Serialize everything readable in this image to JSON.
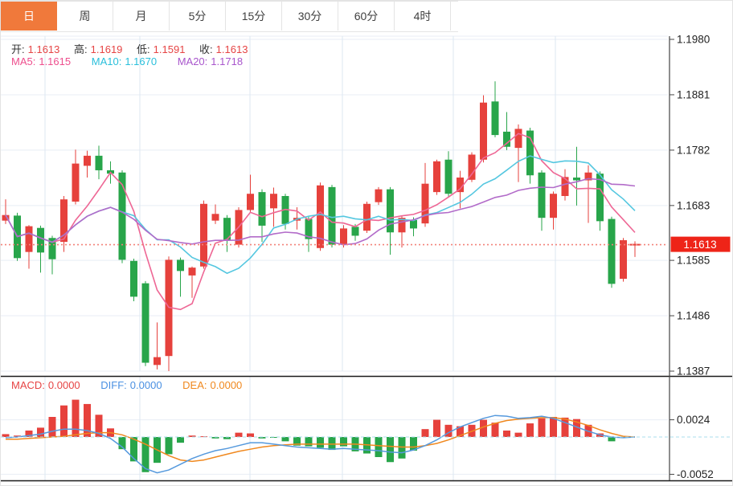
{
  "tabs": {
    "items": [
      {
        "label": "日",
        "active": true
      },
      {
        "label": "周",
        "active": false
      },
      {
        "label": "月",
        "active": false
      },
      {
        "label": "5分",
        "active": false
      },
      {
        "label": "15分",
        "active": false
      },
      {
        "label": "30分",
        "active": false
      },
      {
        "label": "60分",
        "active": false
      },
      {
        "label": "4时",
        "active": false
      }
    ]
  },
  "quote": {
    "open_label": "开:",
    "open": "1.1613",
    "high_label": "高:",
    "high": "1.1619",
    "low_label": "低:",
    "low": "1.1591",
    "close_label": "收:",
    "close": "1.1613",
    "ma5_label": "MA5:",
    "ma5": "1.1615",
    "ma10_label": "MA10:",
    "ma10": "1.1670",
    "ma20_label": "MA20:",
    "ma20": "1.1718"
  },
  "macd_header": {
    "macd_label": "MACD:",
    "macd": "0.0000",
    "diff_label": "DIFF:",
    "diff": "0.0000",
    "dea_label": "DEA:",
    "dea": "0.0000"
  },
  "colors": {
    "up": "#e6413c",
    "down": "#28a54a",
    "ma5": "#ee6795",
    "ma10": "#55c7e0",
    "ma20": "#b26bc9",
    "diff_line": "#5599dd",
    "dea_line": "#f0881e",
    "last_price_line": "#f4827a",
    "price_tag": "#ee2418",
    "tab_active": "#f0793b",
    "grid": "#e8eef5",
    "vgrid": "#dde7f1",
    "axis_line": "#444444",
    "zero_dash": "#a8dcec",
    "panel_divider": "#1a1a1a"
  },
  "chart_data": {
    "type": "candlestick+macd",
    "title": "",
    "legend": [
      "MA5",
      "MA10",
      "MA20",
      "MACD",
      "DIFF",
      "DEA"
    ],
    "price_axis": {
      "labels": [
        "1.1980",
        "1.1881",
        "1.1782",
        "1.1683",
        "1.1585",
        "1.1486",
        "1.1387"
      ],
      "values": [
        1.198,
        1.1881,
        1.1782,
        1.1683,
        1.1585,
        1.1486,
        1.1387
      ],
      "range": [
        1.1387,
        1.198
      ]
    },
    "last_price": 1.1613,
    "last_price_label": "1.1613",
    "ma_periods": [
      5,
      10,
      20
    ],
    "candles_format": [
      "open",
      "high",
      "low",
      "close"
    ],
    "candles": [
      [
        1.1656,
        1.1694,
        1.165,
        1.1666
      ],
      [
        1.1665,
        1.167,
        1.1584,
        1.1589
      ],
      [
        1.16,
        1.1648,
        1.157,
        1.1646
      ],
      [
        1.1643,
        1.1647,
        1.1563,
        1.1599
      ],
      [
        1.1625,
        1.1629,
        1.156,
        1.1587
      ],
      [
        1.1618,
        1.17,
        1.16,
        1.1694
      ],
      [
        1.169,
        1.1783,
        1.1685,
        1.1758
      ],
      [
        1.1754,
        1.1781,
        1.1733,
        1.1772
      ],
      [
        1.1772,
        1.179,
        1.173,
        1.1746
      ],
      [
        1.1746,
        1.1762,
        1.1722,
        1.174
      ],
      [
        1.1742,
        1.1746,
        1.158,
        1.1586
      ],
      [
        1.1584,
        1.1588,
        1.1512,
        1.152
      ],
      [
        1.1544,
        1.1548,
        1.1396,
        1.1402
      ],
      [
        1.1398,
        1.1474,
        1.139,
        1.1412
      ],
      [
        1.1414,
        1.1592,
        1.1387,
        1.1586
      ],
      [
        1.1586,
        1.159,
        1.152,
        1.1566
      ],
      [
        1.1558,
        1.1574,
        1.1518,
        1.1572
      ],
      [
        1.1574,
        1.1692,
        1.157,
        1.1686
      ],
      [
        1.1656,
        1.1685,
        1.165,
        1.1668
      ],
      [
        1.1661,
        1.1666,
        1.16,
        1.1621
      ],
      [
        1.1613,
        1.168,
        1.1608,
        1.1675
      ],
      [
        1.1675,
        1.1738,
        1.167,
        1.1704
      ],
      [
        1.1707,
        1.1712,
        1.1618,
        1.1647
      ],
      [
        1.1678,
        1.1715,
        1.1645,
        1.1704
      ],
      [
        1.17,
        1.1704,
        1.164,
        1.165
      ],
      [
        1.1656,
        1.168,
        1.164,
        1.1661
      ],
      [
        1.1659,
        1.1663,
        1.16,
        1.1623
      ],
      [
        1.1607,
        1.1724,
        1.1602,
        1.1719
      ],
      [
        1.1716,
        1.172,
        1.1608,
        1.1613
      ],
      [
        1.1613,
        1.1648,
        1.1608,
        1.1642
      ],
      [
        1.1645,
        1.165,
        1.162,
        1.1629
      ],
      [
        1.1638,
        1.169,
        1.1634,
        1.1686
      ],
      [
        1.1689,
        1.1716,
        1.1684,
        1.1712
      ],
      [
        1.1712,
        1.1716,
        1.1595,
        1.1635
      ],
      [
        1.1635,
        1.1665,
        1.1608,
        1.1661
      ],
      [
        1.1657,
        1.1662,
        1.1628,
        1.1642
      ],
      [
        1.1651,
        1.1759,
        1.1645,
        1.1722
      ],
      [
        1.1707,
        1.1765,
        1.1702,
        1.1762
      ],
      [
        1.1765,
        1.178,
        1.1698,
        1.1704
      ],
      [
        1.1707,
        1.1745,
        1.1678,
        1.1733
      ],
      [
        1.1729,
        1.1778,
        1.1725,
        1.1774
      ],
      [
        1.1765,
        1.188,
        1.176,
        1.1867
      ],
      [
        1.1869,
        1.1905,
        1.1805,
        1.1809
      ],
      [
        1.1815,
        1.185,
        1.1782,
        1.1788
      ],
      [
        1.1786,
        1.1828,
        1.1725,
        1.182
      ],
      [
        1.1817,
        1.1822,
        1.1722,
        1.1737
      ],
      [
        1.1742,
        1.1746,
        1.1638,
        1.1661
      ],
      [
        1.1661,
        1.1708,
        1.164,
        1.1704
      ],
      [
        1.17,
        1.1748,
        1.1692,
        1.1734
      ],
      [
        1.1733,
        1.1788,
        1.1683,
        1.1728
      ],
      [
        1.1728,
        1.1755,
        1.1652,
        1.1742
      ],
      [
        1.174,
        1.1744,
        1.1638,
        1.1655
      ],
      [
        1.1659,
        1.1663,
        1.1536,
        1.1543
      ],
      [
        1.1552,
        1.1625,
        1.1547,
        1.1621
      ],
      [
        1.1613,
        1.1619,
        1.1591,
        1.1613
      ]
    ],
    "macd": {
      "axis_labels": [
        "0.0024",
        "-0.0052"
      ],
      "axis_values": [
        0.0024,
        -0.0052
      ],
      "unit": 0.0001,
      "histogram": [
        4,
        2,
        9,
        13,
        28,
        44,
        52,
        46,
        31,
        12,
        -17,
        -34,
        -49,
        -36,
        -24,
        -8,
        2,
        1,
        -2,
        -3,
        6,
        5,
        -2,
        -1,
        -6,
        -12,
        -13,
        -15,
        -18,
        -13,
        -20,
        -23,
        -28,
        -35,
        -30,
        -19,
        11,
        24,
        17,
        15,
        17,
        24,
        20,
        9,
        6,
        19,
        26,
        28,
        27,
        25,
        17,
        5,
        -6,
        0,
        0
      ],
      "diff": [
        -1,
        0,
        2,
        4,
        8,
        11,
        11,
        9,
        5,
        -2,
        -14,
        -30,
        -44,
        -50,
        -46,
        -38,
        -30,
        -24,
        -19,
        -16,
        -12,
        -8,
        -8,
        -10,
        -12,
        -14,
        -15,
        -16,
        -17,
        -16,
        -17,
        -18,
        -19,
        -21,
        -22,
        -18,
        -12,
        -4,
        6,
        14,
        20,
        26,
        30,
        29,
        26,
        27,
        29,
        26,
        20,
        14,
        8,
        3,
        0,
        -1,
        0
      ],
      "dea": [
        -3,
        -3,
        -2,
        -1,
        0,
        1,
        3,
        5,
        6,
        6,
        3,
        -3,
        -10,
        -18,
        -26,
        -32,
        -34,
        -32,
        -28,
        -24,
        -20,
        -17,
        -14,
        -12,
        -11,
        -10,
        -10,
        -10,
        -10,
        -10,
        -10,
        -11,
        -12,
        -13,
        -14,
        -14,
        -12,
        -9,
        -4,
        2,
        8,
        14,
        19,
        23,
        25,
        26,
        27,
        27,
        25,
        21,
        16,
        10,
        5,
        1,
        0
      ]
    },
    "grid": {
      "vertical_x": [
        55,
        173,
        310,
        425,
        563,
        690
      ]
    }
  }
}
